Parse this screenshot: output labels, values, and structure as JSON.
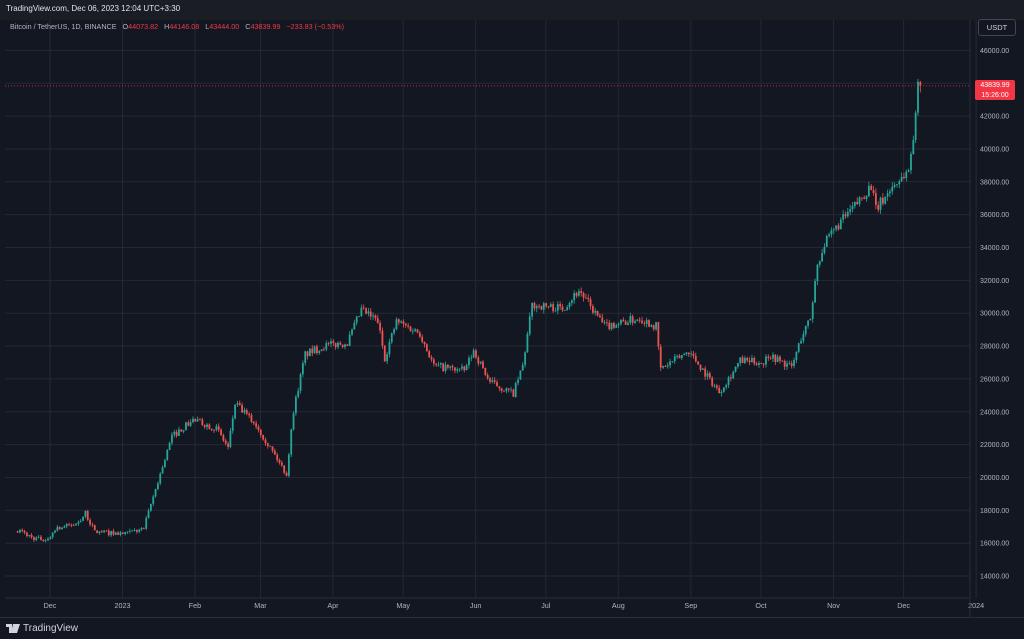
{
  "header": {
    "title": "TradingView.com, Dec 06, 2023 12:04 UTC+3:30"
  },
  "legend": {
    "symbol": "Bitcoin / TetherUS, 1D, BINANCE",
    "o_label": "O",
    "o_value": "44073.82",
    "h_label": "H",
    "h_value": "44146.08",
    "l_label": "L",
    "l_value": "43444.00",
    "c_label": "C",
    "c_value": "43839.99",
    "change": "−233.83 (−0.53%)"
  },
  "currency_button": "USDT",
  "price_badge": {
    "price": "43839.99",
    "countdown": "15:26:00",
    "color": "#f23645"
  },
  "footer": {
    "brand": "TradingView"
  },
  "colors": {
    "up": "#26a69a",
    "down": "#ef5350",
    "background": "#131722",
    "grid": "#242832",
    "last_price_line": "#f23645"
  },
  "chart_data": {
    "type": "candlestick",
    "interval": "1D",
    "ylim": [
      13000,
      47500
    ],
    "y_ticks": [
      "14000.00",
      "16000.00",
      "18000.00",
      "20000.00",
      "22000.00",
      "24000.00",
      "26000.00",
      "28000.00",
      "30000.00",
      "32000.00",
      "34000.00",
      "36000.00",
      "38000.00",
      "40000.00",
      "42000.00",
      "44000.00",
      "46000.00"
    ],
    "x_ticks": [
      "Dec",
      "2023",
      "Feb",
      "Mar",
      "Apr",
      "May",
      "Jun",
      "Jul",
      "Aug",
      "Sep",
      "Oct",
      "Nov",
      "Dec",
      "2024"
    ],
    "last_price": 43839.99,
    "close_path": [
      {
        "date": "2022-11-15",
        "close": 16800
      },
      {
        "date": "2022-11-22",
        "close": 16300
      },
      {
        "date": "2022-11-28",
        "close": 16200
      },
      {
        "date": "2022-12-01",
        "close": 16900
      },
      {
        "date": "2022-12-10",
        "close": 17150
      },
      {
        "date": "2022-12-14",
        "close": 17800
      },
      {
        "date": "2022-12-18",
        "close": 16700
      },
      {
        "date": "2022-12-31",
        "close": 16550
      },
      {
        "date": "2023-01-08",
        "close": 16900
      },
      {
        "date": "2023-01-13",
        "close": 19300
      },
      {
        "date": "2023-01-20",
        "close": 22500
      },
      {
        "date": "2023-01-29",
        "close": 23500
      },
      {
        "date": "2023-02-08",
        "close": 23000
      },
      {
        "date": "2023-02-13",
        "close": 21800
      },
      {
        "date": "2023-02-16",
        "close": 24500
      },
      {
        "date": "2023-02-25",
        "close": 23200
      },
      {
        "date": "2023-03-10",
        "close": 20200
      },
      {
        "date": "2023-03-13",
        "close": 24100
      },
      {
        "date": "2023-03-18",
        "close": 27500
      },
      {
        "date": "2023-03-26",
        "close": 28000
      },
      {
        "date": "2023-04-05",
        "close": 28200
      },
      {
        "date": "2023-04-11",
        "close": 30200
      },
      {
        "date": "2023-04-18",
        "close": 29500
      },
      {
        "date": "2023-04-21",
        "close": 27300
      },
      {
        "date": "2023-04-26",
        "close": 29500
      },
      {
        "date": "2023-05-06",
        "close": 28800
      },
      {
        "date": "2023-05-12",
        "close": 26800
      },
      {
        "date": "2023-05-25",
        "close": 26500
      },
      {
        "date": "2023-05-29",
        "close": 27700
      },
      {
        "date": "2023-06-05",
        "close": 25800
      },
      {
        "date": "2023-06-15",
        "close": 25100
      },
      {
        "date": "2023-06-19",
        "close": 26800
      },
      {
        "date": "2023-06-23",
        "close": 30500
      },
      {
        "date": "2023-07-06",
        "close": 30300
      },
      {
        "date": "2023-07-13",
        "close": 31400
      },
      {
        "date": "2023-07-24",
        "close": 29200
      },
      {
        "date": "2023-08-08",
        "close": 29700
      },
      {
        "date": "2023-08-15",
        "close": 29200
      },
      {
        "date": "2023-08-17",
        "close": 26600
      },
      {
        "date": "2023-08-29",
        "close": 27700
      },
      {
        "date": "2023-09-11",
        "close": 25200
      },
      {
        "date": "2023-09-20",
        "close": 27100
      },
      {
        "date": "2023-09-30",
        "close": 27000
      },
      {
        "date": "2023-10-02",
        "close": 27500
      },
      {
        "date": "2023-10-12",
        "close": 26700
      },
      {
        "date": "2023-10-16",
        "close": 28500
      },
      {
        "date": "2023-10-20",
        "close": 29700
      },
      {
        "date": "2023-10-23",
        "close": 33000
      },
      {
        "date": "2023-10-26",
        "close": 34200
      },
      {
        "date": "2023-11-01",
        "close": 35400
      },
      {
        "date": "2023-11-09",
        "close": 36700
      },
      {
        "date": "2023-11-15",
        "close": 37800
      },
      {
        "date": "2023-11-17",
        "close": 36300
      },
      {
        "date": "2023-11-24",
        "close": 37700
      },
      {
        "date": "2023-12-01",
        "close": 38700
      },
      {
        "date": "2023-12-04",
        "close": 41900
      },
      {
        "date": "2023-12-05",
        "close": 44073.82
      },
      {
        "date": "2023-12-06",
        "close": 43839.99
      }
    ]
  }
}
